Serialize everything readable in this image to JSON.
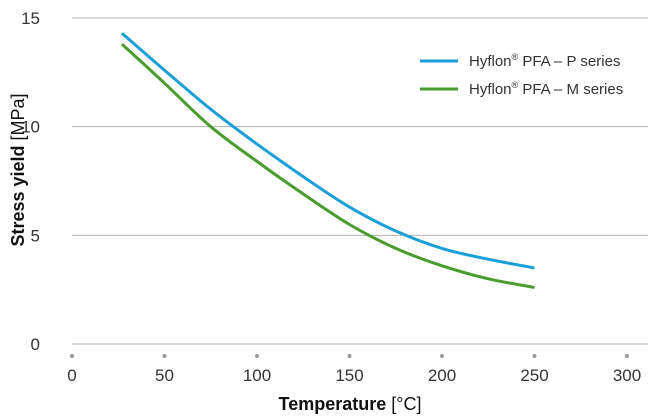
{
  "chart_data": {
    "type": "line",
    "xlabel": {
      "bold": "Temperature",
      "unit": " [°C]"
    },
    "ylabel": {
      "bold": "Stress yield",
      "unit": " [MPa]"
    },
    "xlim": [
      0,
      300
    ],
    "ylim": [
      0,
      15
    ],
    "xticks": [
      0,
      50,
      100,
      150,
      200,
      250,
      300
    ],
    "yticks": [
      0,
      5,
      10,
      15
    ],
    "grid": "horizontal",
    "legend_position": "top-right",
    "series": [
      {
        "name_parts": [
          "Hyflon",
          "®",
          " PFA – P series"
        ],
        "color": "#1a9fd9",
        "x": [
          27,
          50,
          75,
          100,
          125,
          150,
          175,
          200,
          225,
          250
        ],
        "y": [
          14.3,
          12.6,
          10.8,
          9.2,
          7.7,
          6.3,
          5.2,
          4.4,
          3.9,
          3.5
        ]
      },
      {
        "name_parts": [
          "Hyflon",
          "®",
          " PFA – M series"
        ],
        "color": "#4a9c2f",
        "x": [
          27,
          50,
          75,
          100,
          125,
          150,
          175,
          200,
          225,
          250
        ],
        "y": [
          13.8,
          12.0,
          10.0,
          8.4,
          6.9,
          5.5,
          4.4,
          3.6,
          3.0,
          2.6
        ]
      }
    ]
  }
}
